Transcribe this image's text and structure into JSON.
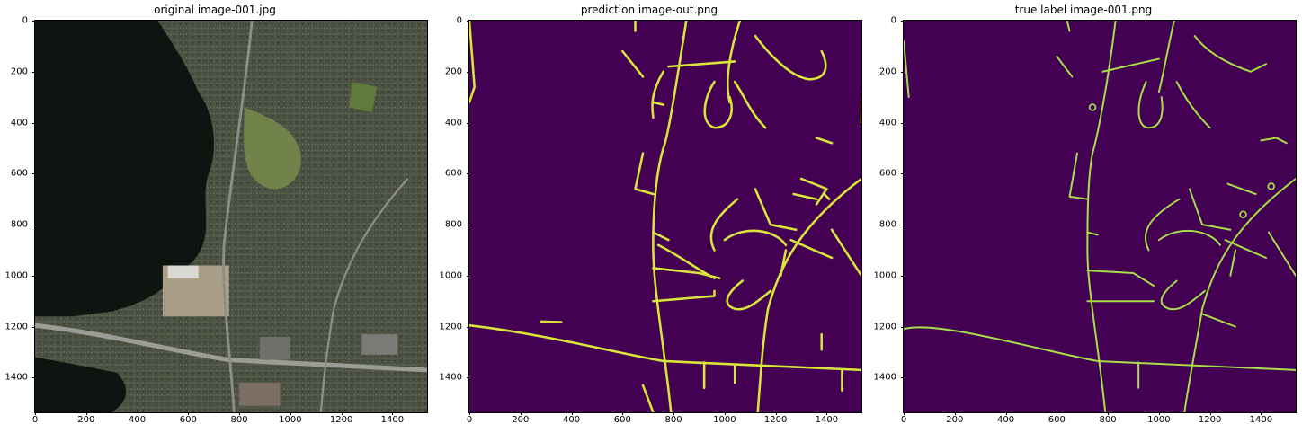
{
  "figure": {
    "panels": [
      {
        "id": "original",
        "title": "original image-001.jpg"
      },
      {
        "id": "prediction",
        "title": "prediction image-out.png"
      },
      {
        "id": "truth",
        "title": "true label image-001.png"
      }
    ],
    "x_ticks": [
      "0",
      "200",
      "400",
      "600",
      "800",
      "1000",
      "1200",
      "1400"
    ],
    "x_tick_values": [
      0,
      200,
      400,
      600,
      800,
      1000,
      1200,
      1400
    ],
    "y_ticks": [
      "0",
      "200",
      "400",
      "600",
      "800",
      "1000",
      "1200",
      "1400"
    ],
    "y_tick_values": [
      0,
      200,
      400,
      600,
      800,
      1000,
      1200,
      1400
    ],
    "axis_range": [
      0,
      1536
    ],
    "colors": {
      "background_mask": "#440154",
      "road_mask": "#d8e63a",
      "water": "#0e1510",
      "land": "#4a5040",
      "grass": "#6f8048"
    }
  }
}
